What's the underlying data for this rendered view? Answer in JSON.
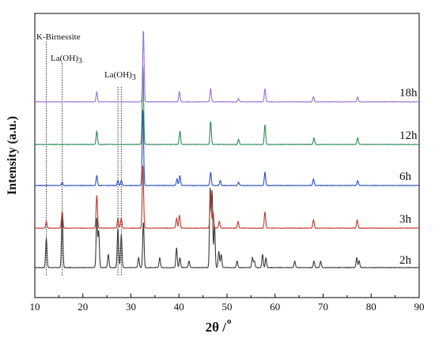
{
  "chart_data": {
    "type": "line",
    "title": "",
    "xlabel": "2θ /o",
    "xlabel_main": "2θ /",
    "xlabel_sup": "o",
    "ylabel": "Intensity (a.u.)",
    "xlim": [
      10,
      90
    ],
    "x_ticks": [
      10,
      20,
      30,
      40,
      50,
      60,
      70,
      80,
      90
    ],
    "y_ticks_shown": false,
    "grid": false,
    "annotations": [
      {
        "text": "K-Birnessite",
        "at_x": [
          12.4
        ]
      },
      {
        "text": "La(OH)3",
        "main": "La(OH)",
        "sub": "3",
        "at_x": [
          15.7
        ]
      },
      {
        "text": "La(OH)3",
        "main": "La(OH)",
        "sub": "3",
        "at_x": [
          27.3,
          28.0
        ]
      }
    ],
    "series": [
      {
        "name": "2h",
        "color": "#3a3a3a",
        "baseline": 0,
        "noise": 0.07,
        "peaks": [
          [
            12.4,
            9
          ],
          [
            15.7,
            17
          ],
          [
            22.9,
            15
          ],
          [
            23.3,
            11
          ],
          [
            25.3,
            4
          ],
          [
            27.3,
            12
          ],
          [
            28.0,
            10
          ],
          [
            31.6,
            3
          ],
          [
            32.6,
            14
          ],
          [
            36.0,
            3
          ],
          [
            39.5,
            6
          ],
          [
            40.2,
            3
          ],
          [
            42.1,
            2
          ],
          [
            46.5,
            24
          ],
          [
            46.9,
            23
          ],
          [
            47.4,
            13
          ],
          [
            48.3,
            5
          ],
          [
            48.8,
            4
          ],
          [
            52.1,
            2
          ],
          [
            55.3,
            3
          ],
          [
            55.7,
            2
          ],
          [
            57.4,
            4
          ],
          [
            58.1,
            3
          ],
          [
            64.1,
            2
          ],
          [
            68.1,
            2
          ],
          [
            69.5,
            2
          ],
          [
            77.0,
            3
          ],
          [
            77.5,
            2
          ]
        ]
      },
      {
        "name": "3h",
        "color": "#c03a2b",
        "baseline": 1,
        "noise": 0.07,
        "peaks": [
          [
            12.4,
            2
          ],
          [
            15.7,
            5
          ],
          [
            22.9,
            10
          ],
          [
            27.3,
            3
          ],
          [
            28.0,
            3
          ],
          [
            32.5,
            19
          ],
          [
            39.5,
            3
          ],
          [
            40.1,
            4
          ],
          [
            46.6,
            11
          ],
          [
            47.1,
            5
          ],
          [
            48.4,
            2
          ],
          [
            52.3,
            2
          ],
          [
            57.9,
            5
          ],
          [
            68.0,
            2.5
          ],
          [
            77.1,
            2.5
          ]
        ]
      },
      {
        "name": "6h",
        "color": "#2a4fc2",
        "baseline": 2,
        "noise": 0.07,
        "peaks": [
          [
            15.7,
            1
          ],
          [
            22.9,
            3
          ],
          [
            27.3,
            1.5
          ],
          [
            28.0,
            1.5
          ],
          [
            32.5,
            23
          ],
          [
            39.6,
            2
          ],
          [
            40.2,
            3
          ],
          [
            46.6,
            4
          ],
          [
            48.6,
            1.5
          ],
          [
            52.4,
            1
          ],
          [
            57.9,
            4
          ],
          [
            68.0,
            2
          ],
          [
            77.2,
            1.5
          ]
        ]
      },
      {
        "name": "12h",
        "color": "#2e8b57",
        "baseline": 3,
        "noise": 0.07,
        "peaks": [
          [
            22.9,
            4
          ],
          [
            32.5,
            24
          ],
          [
            40.2,
            4
          ],
          [
            46.6,
            7
          ],
          [
            52.4,
            1.5
          ],
          [
            57.9,
            6
          ],
          [
            68.1,
            2
          ],
          [
            77.2,
            2
          ]
        ]
      },
      {
        "name": "18h",
        "color": "#9b6fd6",
        "baseline": 4,
        "noise": 0.07,
        "peaks": [
          [
            22.9,
            3
          ],
          [
            32.6,
            22
          ],
          [
            40.1,
            3
          ],
          [
            46.6,
            4
          ],
          [
            52.4,
            1
          ],
          [
            57.9,
            4
          ],
          [
            68.0,
            1.5
          ],
          [
            77.2,
            1.5
          ]
        ]
      }
    ]
  }
}
